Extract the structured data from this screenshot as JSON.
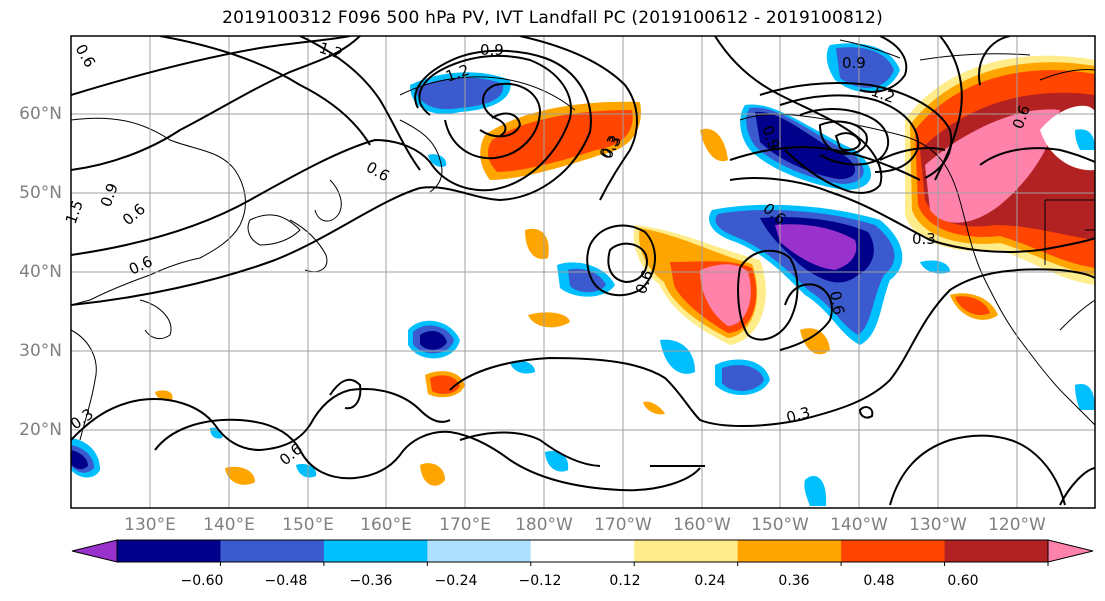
{
  "title": "2019100312 F096 500 hPa PV, IVT Landfall PC (2019100612 - 2019100812)",
  "lat_labels": [
    "60°N",
    "50°N",
    "40°N",
    "30°N",
    "20°N"
  ],
  "lon_labels": [
    "130°E",
    "140°E",
    "150°E",
    "160°E",
    "170°E",
    "180°W",
    "170°W",
    "160°W",
    "150°W",
    "140°W",
    "130°W",
    "120°W"
  ],
  "colorbar": {
    "ticks": [
      "−0.60",
      "−0.48",
      "−0.36",
      "−0.24",
      "−0.12",
      "0.12",
      "0.24",
      "0.36",
      "0.48",
      "0.60"
    ],
    "colors": [
      "#9932cc",
      "#00008b",
      "#3a5acd",
      "#00bfff",
      "#b0e0ff",
      "#ffffff",
      "#ffec8b",
      "#ffa500",
      "#ff4500",
      "#b22222",
      "#ff82ab"
    ]
  },
  "contour_labels": [
    "1.2",
    "0.9",
    "1.2",
    "0.6",
    "0.3",
    "1.5",
    "0.9",
    "0.6",
    "0.6",
    "0.9",
    "1.2",
    "0.9",
    "0.6",
    "0.6",
    "0.3",
    "0.6",
    "0.6",
    "0.3",
    "0.3",
    "0.6",
    "0.3",
    "0.6"
  ]
}
